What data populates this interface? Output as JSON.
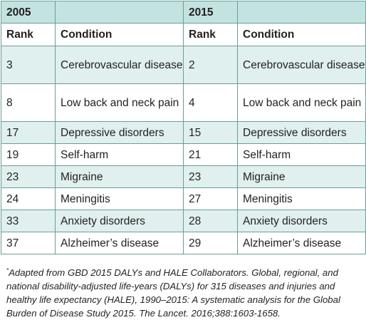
{
  "header": {
    "year_a": "2005",
    "year_b": "2015",
    "rank_label": "Rank",
    "condition_label": "Condition"
  },
  "rows": [
    {
      "rank_2005": "3",
      "condition_2005": "Cerebrovascular disease",
      "rank_2015": "2",
      "condition_2015": "Cerebrovascular disease"
    },
    {
      "rank_2005": "8",
      "condition_2005": "Low back and neck pain",
      "rank_2015": "4",
      "condition_2015": "Low back and neck pain"
    },
    {
      "rank_2005": "17",
      "condition_2005": "Depressive disorders",
      "rank_2015": "15",
      "condition_2015": "Depressive disorders"
    },
    {
      "rank_2005": "19",
      "condition_2005": "Self-harm",
      "rank_2015": "21",
      "condition_2015": "Self-harm"
    },
    {
      "rank_2005": "23",
      "condition_2005": "Migraine",
      "rank_2015": "23",
      "condition_2015": "Migraine"
    },
    {
      "rank_2005": "24",
      "condition_2005": "Meningitis",
      "rank_2015": "27",
      "condition_2015": "Meningitis"
    },
    {
      "rank_2005": "33",
      "condition_2005": "Anxiety disorders",
      "rank_2015": "28",
      "condition_2015": "Anxiety disorders"
    },
    {
      "rank_2005": "37",
      "condition_2005": "Alzheimer’s disease",
      "rank_2015": "29",
      "condition_2015": "Alzheimer’s disease"
    }
  ],
  "footnote": {
    "marker": "*",
    "text": "Adapted from GBD 2015 DALYs and HALE Collaborators. Global, regional, and national disability-adjusted life-years (DALYs) for 315 diseases and injuries and healthy life expectancy (HALE), 1990–2015: A systematic analysis for the Global Burden of Disease Study 2015. The Lancet. 2016;388:1603-1658."
  },
  "colors": {
    "border": "#6d9c98",
    "header_fill": "#c3e3e0",
    "row_shade": "#dff0ee",
    "text": "#231f20"
  }
}
